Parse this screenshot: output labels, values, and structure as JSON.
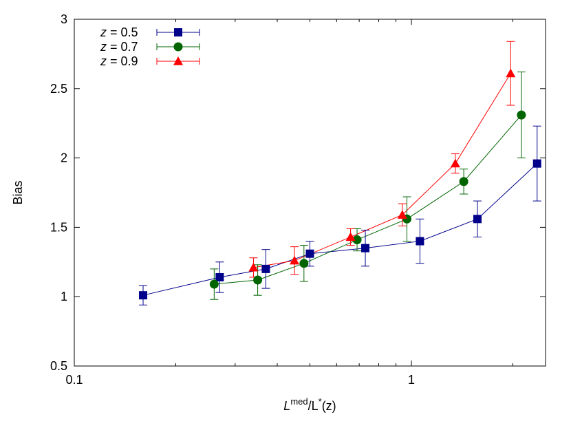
{
  "chart_data": {
    "type": "scatter",
    "xlabel": {
      "main": "L",
      "sup": "med",
      "mid": "/L",
      "sup2": "*",
      "tail": "(z)"
    },
    "ylabel": "Bias",
    "xscale": "log",
    "xlim": [
      0.1,
      2.5
    ],
    "ylim": [
      0.5,
      3.0
    ],
    "x_ticks": [
      0.1,
      1
    ],
    "x_tick_labels": [
      "0.1",
      "1"
    ],
    "y_ticks": [
      0.5,
      1.0,
      1.5,
      2.0,
      2.5,
      3.0
    ],
    "y_tick_labels": [
      "0.5",
      "1",
      "1.5",
      "2",
      "2.5",
      "3"
    ],
    "legend_position": "top-left",
    "grid": false,
    "series": [
      {
        "name": "z = 0.5",
        "name_var": "z",
        "name_rest": " = 0.5",
        "color": "#00008b",
        "marker": "square",
        "points": [
          {
            "x": 0.16,
            "y": 1.01,
            "err": 0.07
          },
          {
            "x": 0.27,
            "y": 1.14,
            "err": 0.11
          },
          {
            "x": 0.37,
            "y": 1.2,
            "err": 0.14
          },
          {
            "x": 0.5,
            "y": 1.31,
            "err": 0.09
          },
          {
            "x": 0.73,
            "y": 1.35,
            "err": 0.13
          },
          {
            "x": 1.06,
            "y": 1.4,
            "err": 0.16
          },
          {
            "x": 1.57,
            "y": 1.56,
            "err": 0.13
          },
          {
            "x": 2.36,
            "y": 1.96,
            "err": 0.27
          }
        ]
      },
      {
        "name": "z = 0.7",
        "name_var": "z",
        "name_rest": " = 0.7",
        "color": "#006400",
        "marker": "circle",
        "points": [
          {
            "x": 0.26,
            "y": 1.09,
            "err": 0.11
          },
          {
            "x": 0.35,
            "y": 1.12,
            "err": 0.11
          },
          {
            "x": 0.48,
            "y": 1.24,
            "err": 0.13
          },
          {
            "x": 0.69,
            "y": 1.41,
            "err": 0.08
          },
          {
            "x": 0.97,
            "y": 1.56,
            "err": 0.16
          },
          {
            "x": 1.43,
            "y": 1.83,
            "err": 0.09
          },
          {
            "x": 2.12,
            "y": 2.31,
            "err": 0.31
          }
        ]
      },
      {
        "name": "z = 0.9",
        "name_var": "z",
        "name_rest": " = 0.9",
        "color": "#ff0000",
        "marker": "triangle",
        "points": [
          {
            "x": 0.34,
            "y": 1.21,
            "err": 0.07
          },
          {
            "x": 0.45,
            "y": 1.26,
            "err": 0.1
          },
          {
            "x": 0.66,
            "y": 1.43,
            "err": 0.06
          },
          {
            "x": 0.94,
            "y": 1.59,
            "err": 0.08
          },
          {
            "x": 1.35,
            "y": 1.96,
            "err": 0.07
          },
          {
            "x": 1.97,
            "y": 2.61,
            "err": 0.23
          }
        ]
      }
    ]
  }
}
